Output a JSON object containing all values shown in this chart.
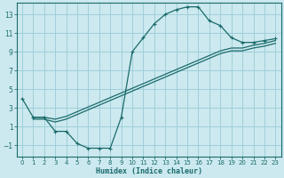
{
  "xlabel": "Humidex (Indice chaleur)",
  "xlim": [
    -0.5,
    23.5
  ],
  "ylim": [
    -2.2,
    14.2
  ],
  "yticks": [
    -1,
    1,
    3,
    5,
    7,
    9,
    11,
    13
  ],
  "xticks": [
    0,
    1,
    2,
    3,
    4,
    5,
    6,
    7,
    8,
    9,
    10,
    11,
    12,
    13,
    14,
    15,
    16,
    17,
    18,
    19,
    20,
    21,
    22,
    23
  ],
  "bg_color": "#cce9ef",
  "grid_color": "#9fcfda",
  "line_color": "#1a6b6b",
  "line1_x": [
    0,
    1,
    2,
    3,
    4,
    5,
    6,
    7,
    8,
    9,
    10,
    11,
    12,
    13,
    14,
    15,
    16,
    17,
    18,
    19,
    20,
    21,
    22,
    23
  ],
  "line1_y": [
    4,
    2,
    2,
    0.5,
    0.5,
    -0.8,
    -1.3,
    -1.3,
    -1.3,
    2.0,
    9.0,
    10.5,
    12.0,
    13.0,
    13.5,
    13.8,
    13.8,
    12.3,
    11.8,
    10.5,
    10.0,
    10.0,
    10.2,
    10.4
  ],
  "line2_x": [
    1,
    2,
    3,
    4,
    5,
    6,
    7,
    8,
    9,
    10,
    11,
    12,
    13,
    14,
    15,
    16,
    17,
    18,
    19,
    20,
    21,
    22,
    23
  ],
  "line2_y": [
    2.0,
    2.0,
    1.8,
    2.1,
    2.6,
    3.1,
    3.6,
    4.1,
    4.6,
    5.1,
    5.6,
    6.1,
    6.6,
    7.1,
    7.6,
    8.1,
    8.6,
    9.1,
    9.4,
    9.4,
    9.7,
    9.9,
    10.2
  ],
  "line3_x": [
    1,
    2,
    3,
    4,
    5,
    6,
    7,
    8,
    9,
    10,
    11,
    12,
    13,
    14,
    15,
    16,
    17,
    18,
    19,
    20,
    21,
    22,
    23
  ],
  "line3_y": [
    1.8,
    1.8,
    1.5,
    1.8,
    2.3,
    2.8,
    3.3,
    3.8,
    4.3,
    4.8,
    5.3,
    5.8,
    6.3,
    6.8,
    7.3,
    7.8,
    8.3,
    8.8,
    9.1,
    9.1,
    9.4,
    9.6,
    9.9
  ]
}
